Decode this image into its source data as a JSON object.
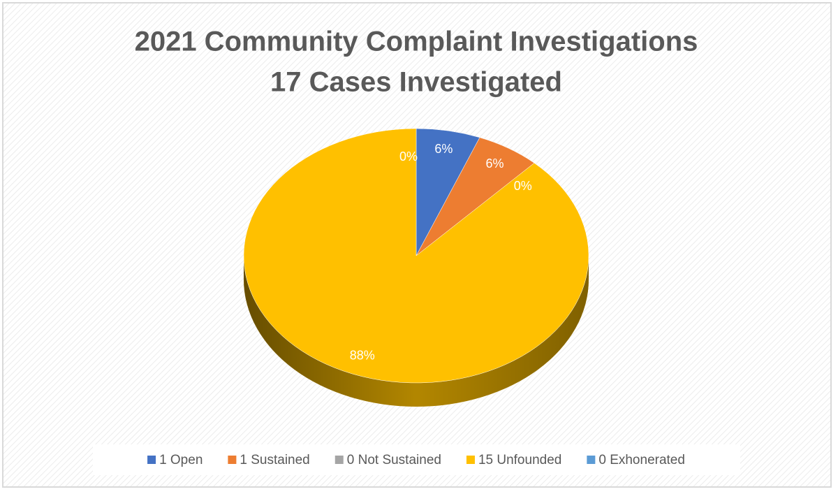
{
  "chart_data": {
    "type": "pie",
    "title": "2021 Community Complaint Investigations",
    "subtitle": "17 Cases Investigated",
    "categories": [
      "1 Open",
      "1 Sustained",
      "0 Not Sustained",
      "15 Unfounded",
      "0 Exhonerated"
    ],
    "values": [
      6,
      6,
      0,
      88,
      0
    ],
    "value_labels": [
      "6%",
      "6%",
      "0%",
      "88%",
      "0%"
    ],
    "colors": [
      "#4472c4",
      "#ed7d31",
      "#a5a5a5",
      "#ffc000",
      "#5b9bd5"
    ],
    "legend": "bottom"
  }
}
